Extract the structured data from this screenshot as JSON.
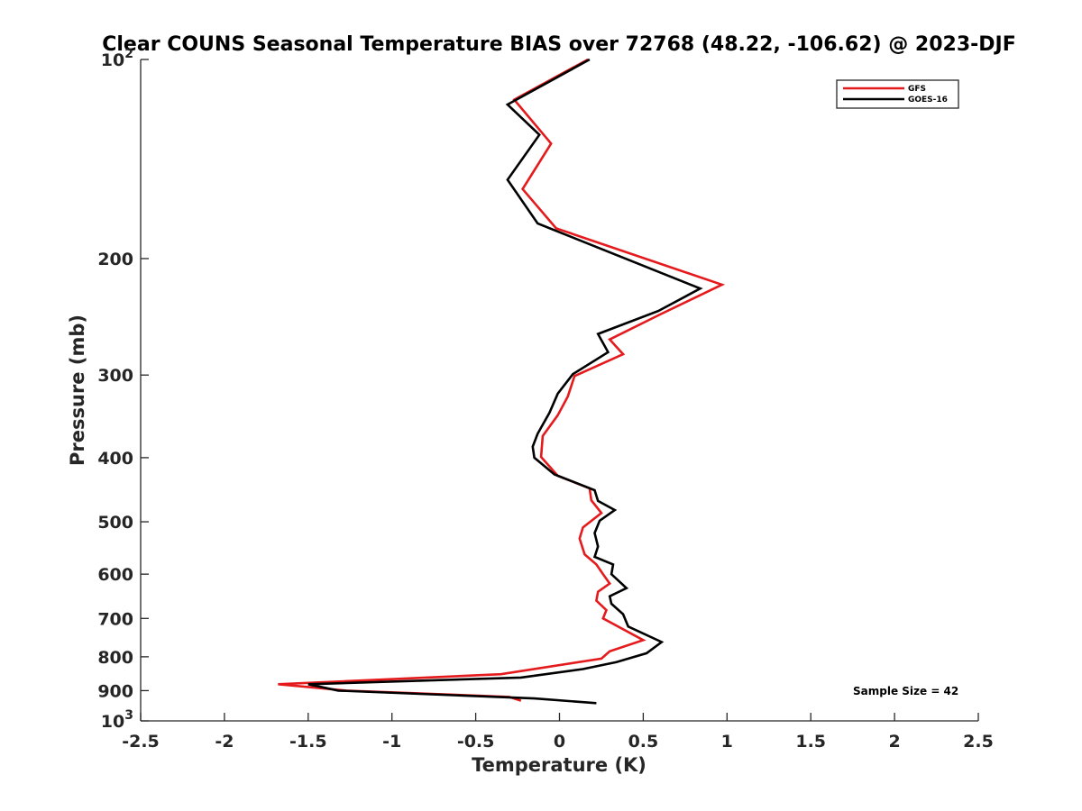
{
  "chart_data": {
    "type": "line",
    "title": "Clear COUNS Seasonal Temperature BIAS over 72768 (48.22, -106.62) @ 2023-DJF",
    "xlabel": "Temperature (K)",
    "ylabel": "Pressure (mb)",
    "xlim": [
      -2.5,
      2.5
    ],
    "ylim": [
      100,
      1000
    ],
    "yscale": "log",
    "y_reversed": true,
    "xticks": [
      "-2.5",
      "-2",
      "-1.5",
      "-1",
      "-0.5",
      "0",
      "0.5",
      "1",
      "1.5",
      "2",
      "2.5"
    ],
    "xtick_values": [
      -2.5,
      -2,
      -1.5,
      -1,
      -0.5,
      0,
      0.5,
      1,
      1.5,
      2,
      2.5
    ],
    "yticks": [
      {
        "value": 100,
        "label": "10",
        "sup": "2"
      },
      {
        "value": 200,
        "label": "200",
        "sup": ""
      },
      {
        "value": 300,
        "label": "300",
        "sup": ""
      },
      {
        "value": 400,
        "label": "400",
        "sup": ""
      },
      {
        "value": 500,
        "label": "500",
        "sup": ""
      },
      {
        "value": 600,
        "label": "600",
        "sup": ""
      },
      {
        "value": 700,
        "label": "700",
        "sup": ""
      },
      {
        "value": 800,
        "label": "800",
        "sup": ""
      },
      {
        "value": 900,
        "label": "900",
        "sup": ""
      },
      {
        "value": 1000,
        "label": "10",
        "sup": "3"
      }
    ],
    "grid": false,
    "legend_position": "top-right",
    "annotation": "Sample Size = 42",
    "series": [
      {
        "name": "GFS",
        "color": "#e41a1c",
        "points": [
          [
            0.17,
            100
          ],
          [
            -0.27,
            115
          ],
          [
            -0.05,
            134
          ],
          [
            -0.22,
            157
          ],
          [
            -0.02,
            180
          ],
          [
            0.97,
            219
          ],
          [
            0.6,
            243
          ],
          [
            0.3,
            265
          ],
          [
            0.38,
            279
          ],
          [
            0.09,
            301
          ],
          [
            0.05,
            323
          ],
          [
            -0.01,
            345
          ],
          [
            -0.1,
            371
          ],
          [
            -0.11,
            399
          ],
          [
            -0.01,
            426
          ],
          [
            0.18,
            445
          ],
          [
            0.19,
            464
          ],
          [
            0.25,
            485
          ],
          [
            0.14,
            510
          ],
          [
            0.12,
            530
          ],
          [
            0.15,
            560
          ],
          [
            0.22,
            580
          ],
          [
            0.26,
            600
          ],
          [
            0.3,
            620
          ],
          [
            0.23,
            638
          ],
          [
            0.22,
            658
          ],
          [
            0.28,
            680
          ],
          [
            0.26,
            700
          ],
          [
            0.5,
            755
          ],
          [
            0.3,
            785
          ],
          [
            0.25,
            805
          ],
          [
            -0.35,
            850
          ],
          [
            -1.68,
            880
          ],
          [
            -1.27,
            900
          ],
          [
            -0.3,
            920
          ],
          [
            -0.23,
            932
          ]
        ]
      },
      {
        "name": "GOES-16",
        "color": "#000000",
        "points": [
          [
            0.18,
            100
          ],
          [
            -0.31,
            117
          ],
          [
            -0.12,
            130
          ],
          [
            -0.31,
            152
          ],
          [
            -0.13,
            177
          ],
          [
            0.84,
            222
          ],
          [
            0.59,
            240
          ],
          [
            0.23,
            260
          ],
          [
            0.29,
            277
          ],
          [
            0.08,
            299
          ],
          [
            -0.01,
            320
          ],
          [
            -0.06,
            342
          ],
          [
            -0.13,
            368
          ],
          [
            -0.16,
            385
          ],
          [
            -0.15,
            400
          ],
          [
            -0.03,
            424
          ],
          [
            0.21,
            448
          ],
          [
            0.23,
            465
          ],
          [
            0.33,
            480
          ],
          [
            0.24,
            498
          ],
          [
            0.21,
            520
          ],
          [
            0.23,
            545
          ],
          [
            0.21,
            565
          ],
          [
            0.32,
            580
          ],
          [
            0.31,
            600
          ],
          [
            0.4,
            630
          ],
          [
            0.3,
            648
          ],
          [
            0.31,
            665
          ],
          [
            0.38,
            690
          ],
          [
            0.41,
            720
          ],
          [
            0.61,
            760
          ],
          [
            0.52,
            790
          ],
          [
            0.34,
            815
          ],
          [
            0.14,
            835
          ],
          [
            -0.23,
            860
          ],
          [
            -1.5,
            880
          ],
          [
            -1.32,
            900
          ],
          [
            -0.15,
            925
          ],
          [
            0.22,
            940
          ]
        ]
      }
    ]
  }
}
